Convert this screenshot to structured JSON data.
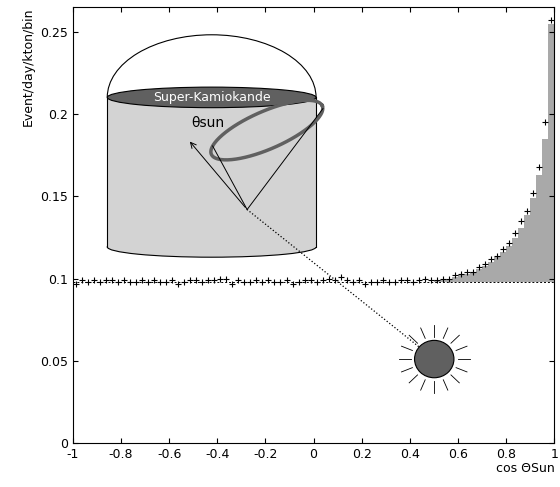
{
  "chart_data": {
    "type": "histogram",
    "xlabel": "cos ΘSun",
    "ylabel": "Event/day/kton/bin",
    "annotations": [
      "Super-Kamiokande",
      "θsun"
    ],
    "bins": [
      -1,
      -0.975,
      -0.95,
      -0.925,
      -0.9,
      -0.875,
      -0.85,
      -0.825,
      -0.8,
      -0.775,
      -0.75,
      -0.725,
      -0.7,
      -0.675,
      -0.65,
      -0.625,
      -0.6,
      -0.575,
      -0.55,
      -0.525,
      -0.5,
      -0.475,
      -0.45,
      -0.425,
      -0.4,
      -0.375,
      -0.35,
      -0.325,
      -0.3,
      -0.275,
      -0.25,
      -0.225,
      -0.2,
      -0.175,
      -0.15,
      -0.125,
      -0.1,
      -0.075,
      -0.05,
      -0.025,
      0,
      0.025,
      0.05,
      0.075,
      0.1,
      0.125,
      0.15,
      0.175,
      0.2,
      0.225,
      0.25,
      0.275,
      0.3,
      0.325,
      0.35,
      0.375,
      0.4,
      0.425,
      0.45,
      0.475,
      0.5,
      0.525,
      0.55,
      0.575,
      0.6,
      0.625,
      0.65,
      0.675,
      0.7,
      0.725,
      0.75,
      0.775,
      0.8,
      0.825,
      0.85,
      0.875,
      0.9,
      0.925,
      0.95,
      0.975,
      1
    ],
    "background": 0.098,
    "expected": [
      0.098,
      0.098,
      0.098,
      0.098,
      0.098,
      0.098,
      0.098,
      0.098,
      0.098,
      0.098,
      0.098,
      0.098,
      0.098,
      0.098,
      0.098,
      0.098,
      0.098,
      0.098,
      0.098,
      0.098,
      0.098,
      0.098,
      0.098,
      0.098,
      0.098,
      0.098,
      0.098,
      0.098,
      0.098,
      0.098,
      0.098,
      0.098,
      0.098,
      0.098,
      0.098,
      0.098,
      0.098,
      0.098,
      0.098,
      0.098,
      0.098,
      0.098,
      0.098,
      0.098,
      0.098,
      0.098,
      0.098,
      0.098,
      0.098,
      0.098,
      0.098,
      0.098,
      0.098,
      0.098,
      0.098,
      0.098,
      0.098,
      0.098,
      0.098,
      0.098,
      0.099,
      0.0995,
      0.1,
      0.101,
      0.102,
      0.103,
      0.104,
      0.106,
      0.108,
      0.11,
      0.113,
      0.116,
      0.12,
      0.125,
      0.131,
      0.139,
      0.149,
      0.163,
      0.185,
      0.255
    ],
    "values": [
      0.097,
      0.099,
      0.098,
      0.099,
      0.098,
      0.099,
      0.099,
      0.098,
      0.099,
      0.098,
      0.098,
      0.099,
      0.098,
      0.099,
      0.098,
      0.098,
      0.099,
      0.097,
      0.098,
      0.099,
      0.099,
      0.098,
      0.099,
      0.099,
      0.1,
      0.1,
      0.097,
      0.099,
      0.098,
      0.098,
      0.099,
      0.098,
      0.099,
      0.098,
      0.098,
      0.099,
      0.097,
      0.098,
      0.099,
      0.099,
      0.098,
      0.099,
      0.1,
      0.099,
      0.101,
      0.099,
      0.098,
      0.099,
      0.097,
      0.098,
      0.098,
      0.099,
      0.098,
      0.098,
      0.099,
      0.099,
      0.098,
      0.099,
      0.1,
      0.099,
      0.099,
      0.1,
      0.1,
      0.102,
      0.103,
      0.104,
      0.104,
      0.107,
      0.109,
      0.112,
      0.114,
      0.118,
      0.122,
      0.128,
      0.135,
      0.141,
      0.152,
      0.168,
      0.195,
      0.257
    ],
    "color": "#a9a9a9",
    "marker": "+",
    "xlim": [
      -1,
      1
    ],
    "xticks": [
      -1,
      -0.8,
      -0.6,
      -0.4,
      -0.2,
      0,
      0.2,
      0.4,
      0.6,
      0.8,
      1
    ],
    "ylim": [
      0,
      0.265
    ],
    "yticks": [
      0,
      0.05,
      0.1,
      0.15,
      0.2,
      0.25
    ]
  }
}
